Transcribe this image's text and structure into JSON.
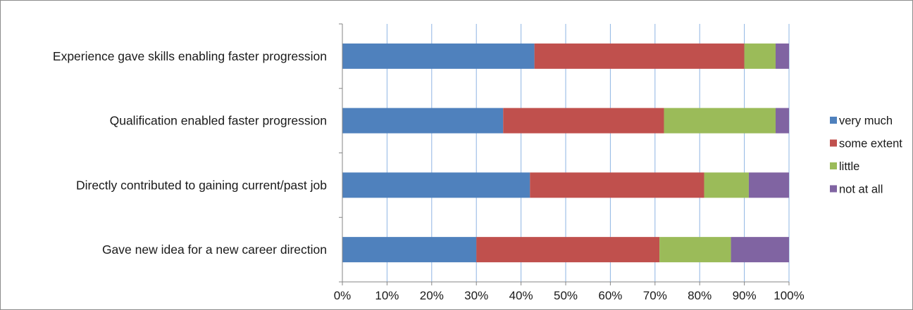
{
  "chart_data": {
    "type": "bar",
    "orientation": "horizontal",
    "stacked": "percent",
    "title": "",
    "xlabel": "",
    "ylabel": "",
    "xlim": [
      0,
      100
    ],
    "x_ticks": [
      "0%",
      "10%",
      "20%",
      "30%",
      "40%",
      "50%",
      "60%",
      "70%",
      "80%",
      "90%",
      "100%"
    ],
    "grid": "vertical",
    "legend_position": "right",
    "categories": [
      "Experience gave skills enabling faster progression",
      "Qualification enabled faster progression",
      "Directly contributed to gaining current/past job",
      "Gave new idea for a new career direction"
    ],
    "series": [
      {
        "name": "very much",
        "color": "#4F81BD",
        "values": [
          43,
          36,
          42,
          30
        ]
      },
      {
        "name": "some extent",
        "color": "#C0504D",
        "values": [
          47,
          36,
          39,
          41
        ]
      },
      {
        "name": "little",
        "color": "#9BBB59",
        "values": [
          7,
          25,
          10,
          16
        ]
      },
      {
        "name": "not at all",
        "color": "#8064A2",
        "values": [
          3,
          3,
          9,
          13
        ]
      }
    ]
  }
}
